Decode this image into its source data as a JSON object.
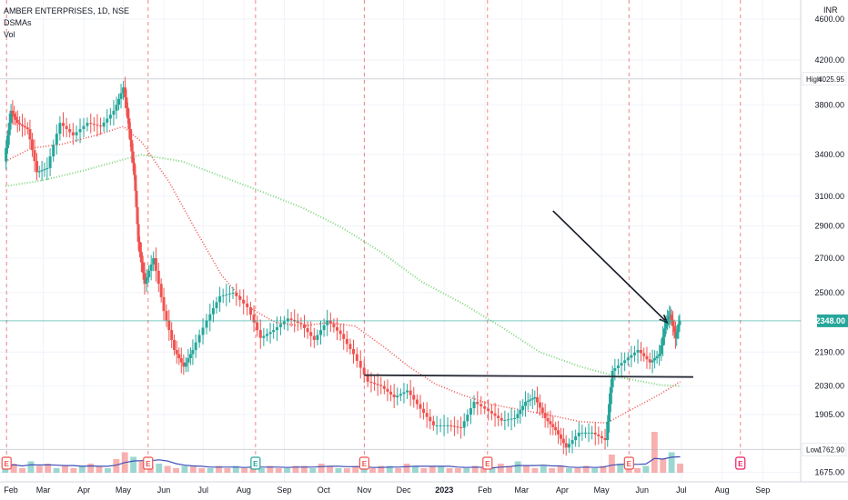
{
  "header": {
    "symbol_line": "AMBER ENTERPRISES, 1D, NSE",
    "indicator_1": "DSMAs",
    "indicator_2": "Vol"
  },
  "currency_label": "INR",
  "colors": {
    "up": "#26a69a",
    "down": "#ef5350",
    "sma_fast": "#ef5350",
    "sma_slow": "#7cd67c",
    "volume_ma": "#3f51b5",
    "annotation": "#131722",
    "current_price_bg": "#26a69a"
  },
  "chart_data": {
    "type": "line",
    "title": "AMBER ENTERPRISES, 1D, NSE",
    "x_axis": {
      "tick_labels": [
        "Feb",
        "Mar",
        "Apr",
        "May",
        "Jun",
        "Jul",
        "Aug",
        "Sep",
        "Oct",
        "Nov",
        "Dec",
        "2023",
        "Feb",
        "Mar",
        "Apr",
        "May",
        "Jun",
        "Jul",
        "Aug",
        "Sep"
      ],
      "range": [
        "2022-01-27",
        "2023-09-30"
      ]
    },
    "y_axis": {
      "scale": "log",
      "tick_labels": [
        "4600.00",
        "4200.00",
        "3800.00",
        "3400.00",
        "3100.00",
        "2900.00",
        "2700.00",
        "2500.00",
        "2190.00",
        "2030.00",
        "1905.00",
        "1675.00"
      ],
      "range": [
        1640,
        4800
      ]
    },
    "price_markers": [
      {
        "label": "High",
        "value": "4025.95"
      },
      {
        "label": "Low",
        "value": "1762.90"
      },
      {
        "label": "",
        "value": "2348.00"
      }
    ],
    "series": [
      {
        "name": "Price",
        "points": [
          [
            "2022-01-31",
            3350
          ],
          [
            "2022-02-05",
            3750
          ],
          [
            "2022-02-10",
            3650
          ],
          [
            "2022-02-18",
            3600
          ],
          [
            "2022-02-25",
            3270
          ],
          [
            "2022-03-05",
            3300
          ],
          [
            "2022-03-15",
            3650
          ],
          [
            "2022-03-25",
            3550
          ],
          [
            "2022-04-05",
            3650
          ],
          [
            "2022-04-15",
            3620
          ],
          [
            "2022-04-25",
            3750
          ],
          [
            "2022-05-02",
            3950
          ],
          [
            "2022-05-06",
            3600
          ],
          [
            "2022-05-10",
            3250
          ],
          [
            "2022-05-13",
            2800
          ],
          [
            "2022-05-18",
            2550
          ],
          [
            "2022-05-25",
            2700
          ],
          [
            "2022-06-02",
            2400
          ],
          [
            "2022-06-10",
            2200
          ],
          [
            "2022-06-17",
            2120
          ],
          [
            "2022-06-24",
            2200
          ],
          [
            "2022-07-05",
            2350
          ],
          [
            "2022-07-15",
            2480
          ],
          [
            "2022-07-25",
            2500
          ],
          [
            "2022-08-05",
            2420
          ],
          [
            "2022-08-15",
            2260
          ],
          [
            "2022-08-25",
            2300
          ],
          [
            "2022-09-05",
            2360
          ],
          [
            "2022-09-15",
            2330
          ],
          [
            "2022-09-25",
            2250
          ],
          [
            "2022-10-05",
            2350
          ],
          [
            "2022-10-15",
            2280
          ],
          [
            "2022-10-25",
            2180
          ],
          [
            "2022-11-05",
            2050
          ],
          [
            "2022-11-15",
            2030
          ],
          [
            "2022-11-25",
            1980
          ],
          [
            "2022-12-05",
            2010
          ],
          [
            "2022-12-15",
            1930
          ],
          [
            "2022-12-25",
            1860
          ],
          [
            "2023-01-05",
            1860
          ],
          [
            "2023-01-15",
            1850
          ],
          [
            "2023-01-25",
            1960
          ],
          [
            "2023-02-05",
            1920
          ],
          [
            "2023-02-15",
            1880
          ],
          [
            "2023-02-25",
            1890
          ],
          [
            "2023-03-05",
            1960
          ],
          [
            "2023-03-12",
            1980
          ],
          [
            "2023-03-20",
            1890
          ],
          [
            "2023-03-28",
            1840
          ],
          [
            "2023-04-05",
            1770
          ],
          [
            "2023-04-15",
            1830
          ],
          [
            "2023-04-25",
            1830
          ],
          [
            "2023-05-05",
            1800
          ],
          [
            "2023-05-10",
            2100
          ],
          [
            "2023-05-20",
            2150
          ],
          [
            "2023-05-30",
            2200
          ],
          [
            "2023-06-08",
            2140
          ],
          [
            "2023-06-15",
            2180
          ],
          [
            "2023-06-20",
            2350
          ],
          [
            "2023-06-23",
            2380
          ],
          [
            "2023-06-27",
            2260
          ],
          [
            "2023-06-30",
            2348
          ]
        ]
      },
      {
        "name": "DSMAs",
        "points": [
          [
            "2022-01-31",
            3350
          ],
          [
            "2022-02-20",
            3450
          ],
          [
            "2022-03-15",
            3480
          ],
          [
            "2022-04-10",
            3550
          ],
          [
            "2022-05-01",
            3620
          ],
          [
            "2022-05-15",
            3500
          ],
          [
            "2022-06-05",
            3200
          ],
          [
            "2022-06-25",
            2880
          ],
          [
            "2022-07-15",
            2600
          ],
          [
            "2022-08-05",
            2420
          ],
          [
            "2022-08-25",
            2340
          ],
          [
            "2022-09-15",
            2320
          ],
          [
            "2022-10-05",
            2340
          ],
          [
            "2022-10-25",
            2320
          ],
          [
            "2022-11-15",
            2220
          ],
          [
            "2022-12-05",
            2120
          ],
          [
            "2022-12-25",
            2040
          ],
          [
            "2023-01-15",
            1990
          ],
          [
            "2023-02-05",
            1950
          ],
          [
            "2023-03-01",
            1925
          ],
          [
            "2023-03-25",
            1900
          ],
          [
            "2023-04-15",
            1875
          ],
          [
            "2023-05-05",
            1870
          ],
          [
            "2023-05-25",
            1930
          ],
          [
            "2023-06-15",
            1995
          ],
          [
            "2023-06-30",
            2050
          ]
        ]
      },
      {
        "name": "DSMAs",
        "points": [
          [
            "2022-01-31",
            3170
          ],
          [
            "2022-02-28",
            3210
          ],
          [
            "2022-03-31",
            3280
          ],
          [
            "2022-04-30",
            3360
          ],
          [
            "2022-05-15",
            3400
          ],
          [
            "2022-06-15",
            3350
          ],
          [
            "2022-07-15",
            3240
          ],
          [
            "2022-08-15",
            3130
          ],
          [
            "2022-09-15",
            3020
          ],
          [
            "2022-10-15",
            2890
          ],
          [
            "2022-11-15",
            2730
          ],
          [
            "2022-12-15",
            2560
          ],
          [
            "2023-01-15",
            2440
          ],
          [
            "2023-02-15",
            2310
          ],
          [
            "2023-03-15",
            2190
          ],
          [
            "2023-04-15",
            2120
          ],
          [
            "2023-05-15",
            2070
          ],
          [
            "2023-06-15",
            2035
          ],
          [
            "2023-06-30",
            2030
          ]
        ]
      }
    ],
    "volume": {
      "name": "Vol",
      "values": [
        3,
        4,
        2,
        5,
        3,
        4,
        2,
        3,
        2,
        3,
        4,
        3,
        2,
        6,
        9,
        7,
        5,
        3,
        4,
        3,
        2,
        3,
        3,
        2,
        2,
        3,
        2,
        3,
        2,
        3,
        2,
        3,
        2,
        2,
        3,
        3,
        2,
        4,
        3,
        2,
        2,
        3,
        2,
        2,
        3,
        3,
        2,
        4,
        3,
        2,
        3,
        3,
        2,
        2,
        2,
        3,
        2,
        2,
        4,
        3,
        5,
        3,
        2,
        3,
        2,
        3,
        2,
        2,
        3,
        2,
        3,
        8,
        4,
        3,
        2,
        3,
        18,
        6,
        9,
        4
      ]
    },
    "annotations": [
      {
        "type": "arrow",
        "from": [
          "2023-03-25",
          3000
        ],
        "to": [
          "2023-06-20",
          2340
        ]
      },
      {
        "type": "horizontal-line",
        "label": "",
        "value": 2080,
        "x_range": [
          "2022-11-01",
          "2023-07-10"
        ]
      }
    ],
    "earnings_markers": [
      "2022-02-01",
      "2022-05-20",
      "2022-08-10",
      "2022-11-01",
      "2023-02-03",
      "2023-05-22",
      "2023-08-15"
    ],
    "dividend_markers": [],
    "grid": true
  }
}
